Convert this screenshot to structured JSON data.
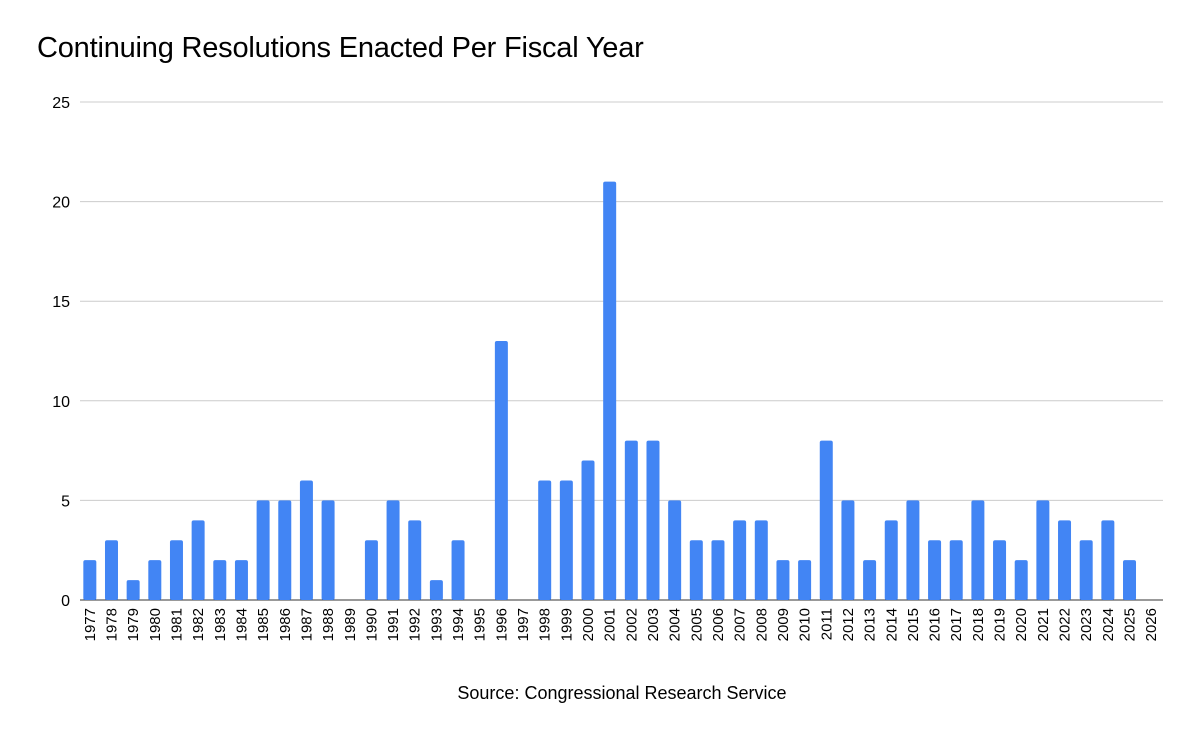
{
  "chart_data": {
    "type": "bar",
    "title": "Continuing Resolutions Enacted Per Fiscal Year",
    "caption": "Source: Congressional Research Service",
    "xlabel": "",
    "ylabel": "",
    "ylim": [
      0,
      25
    ],
    "y_ticks": [
      0,
      5,
      10,
      15,
      20,
      25
    ],
    "grid": true,
    "bar_color": "#4285f4",
    "grid_color": "#cccccc",
    "categories": [
      "1977",
      "1978",
      "1979",
      "1980",
      "1981",
      "1982",
      "1983",
      "1984",
      "1985",
      "1986",
      "1987",
      "1988",
      "1989",
      "1990",
      "1991",
      "1992",
      "1993",
      "1994",
      "1995",
      "1996",
      "1997",
      "1998",
      "1999",
      "2000",
      "2001",
      "2002",
      "2003",
      "2004",
      "2005",
      "2006",
      "2007",
      "2008",
      "2009",
      "2010",
      "2011",
      "2012",
      "2013",
      "2014",
      "2015",
      "2016",
      "2017",
      "2018",
      "2019",
      "2020",
      "2021",
      "2022",
      "2023",
      "2024",
      "2025",
      "2026"
    ],
    "values": [
      2,
      3,
      1,
      2,
      3,
      4,
      2,
      2,
      5,
      5,
      6,
      5,
      0,
      3,
      5,
      4,
      1,
      3,
      0,
      13,
      0,
      6,
      6,
      7,
      21,
      8,
      8,
      5,
      3,
      3,
      4,
      4,
      2,
      2,
      8,
      5,
      2,
      4,
      5,
      3,
      3,
      5,
      3,
      2,
      5,
      4,
      3,
      4,
      2,
      0
    ]
  }
}
